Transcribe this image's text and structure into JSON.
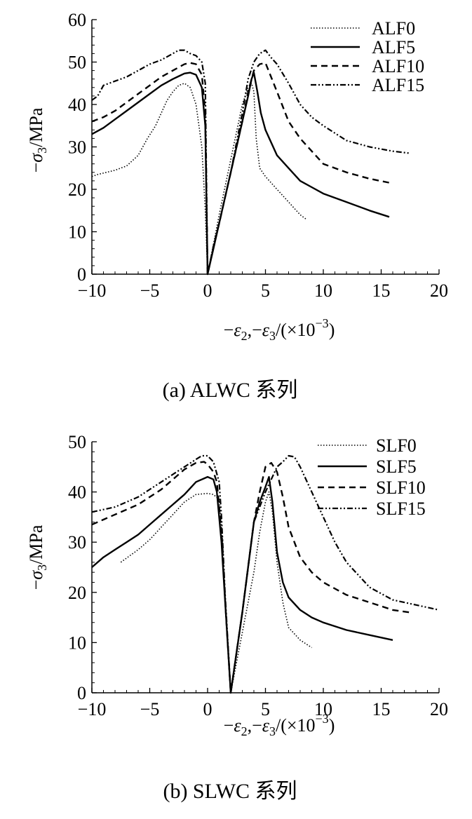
{
  "chart_data": [
    {
      "type": "line",
      "xlabel": "−ε2,−ε3/(×10−3)",
      "xlabel_parts": {
        "minus1": "−",
        "eps2": "ε",
        "sub2": "2",
        "comma": ",",
        "minus2": "−",
        "eps3": "ε",
        "sub3": "3",
        "rest": "/(×10",
        "exp": "−3",
        "close": ")"
      },
      "ylabel": "−σ3/MPa",
      "ylabel_parts": {
        "minus": "−",
        "sigma": "σ",
        "sub": "3",
        "rest": "/MPa"
      },
      "xlim": [
        -10,
        20
      ],
      "ylim": [
        0,
        60
      ],
      "xticks": [
        -10,
        -5,
        0,
        5,
        10,
        15,
        20
      ],
      "xtick_labels": [
        "−10",
        "−5",
        "0",
        "5",
        "10",
        "15",
        "20"
      ],
      "yticks": [
        0,
        10,
        20,
        30,
        40,
        50,
        60
      ],
      "ytick_labels": [
        "0",
        "10",
        "20",
        "30",
        "40",
        "50",
        "60"
      ],
      "legend_position": "top-right",
      "caption": "(a) ALWC 系列",
      "series": [
        {
          "name": "ALF0",
          "style": "dotted",
          "x": [
            -10,
            -9.5,
            -8,
            -7,
            -6,
            -5.2,
            -4.5,
            -4,
            -3.5,
            -3,
            -2.5,
            -2,
            -1.5,
            -1,
            -0.5,
            -0.2,
            0,
            0.5,
            1,
            2,
            3,
            3.5,
            3.8,
            4,
            4.2,
            4.5,
            5,
            6,
            7,
            8,
            8.5
          ],
          "y": [
            23,
            23.5,
            24.5,
            25.5,
            28,
            32,
            35,
            38,
            41,
            43,
            44.5,
            45,
            44,
            40,
            30,
            15,
            0,
            7,
            14,
            27,
            40,
            44,
            45,
            43,
            32,
            25,
            23,
            20,
            17,
            14,
            13
          ]
        },
        {
          "name": "ALF5",
          "style": "solid",
          "x": [
            -10,
            -9,
            -8,
            -7,
            -6,
            -5,
            -4,
            -3,
            -2,
            -1.5,
            -1,
            -0.5,
            -0.2,
            0,
            0.5,
            1,
            2,
            3,
            3.5,
            3.8,
            4,
            4.3,
            4.6,
            5,
            6,
            7,
            8,
            9,
            10,
            12,
            14,
            15.7
          ],
          "y": [
            33,
            34.5,
            36.5,
            38.5,
            40.5,
            42.5,
            44.5,
            46,
            47.3,
            47.5,
            47,
            44,
            35,
            0,
            6,
            12,
            24,
            36,
            42,
            46,
            47.5,
            43,
            38,
            34,
            28,
            25,
            22,
            20.5,
            19,
            17,
            15,
            13.5
          ]
        },
        {
          "name": "ALF10",
          "style": "dashed",
          "x": [
            -10,
            -9,
            -8,
            -7,
            -6,
            -5,
            -4,
            -3,
            -2,
            -1.5,
            -1,
            -0.5,
            -0.2,
            0,
            0.5,
            1,
            2,
            3,
            3.5,
            4,
            4.5,
            5,
            6,
            7,
            8,
            9,
            10,
            12,
            14,
            15.8
          ],
          "y": [
            36,
            37,
            38.5,
            40.5,
            42.5,
            44.5,
            46.5,
            48,
            49.5,
            49.8,
            49.5,
            47,
            38,
            0,
            6.5,
            12,
            24,
            36,
            43,
            48,
            49.5,
            49.8,
            43,
            36,
            32,
            29,
            26,
            24,
            22.5,
            21.5
          ]
        },
        {
          "name": "ALF15",
          "style": "dashdotdot",
          "x": [
            -10,
            -9.5,
            -9,
            -8,
            -7,
            -6,
            -5,
            -4,
            -3,
            -2.5,
            -2,
            -1.5,
            -1,
            -0.5,
            -0.2,
            0,
            0.5,
            1,
            2,
            3,
            3.5,
            4,
            4.5,
            5,
            5.5,
            6,
            7,
            8,
            9,
            10,
            12,
            14,
            16,
            17.5
          ],
          "y": [
            41,
            42,
            44.5,
            45.5,
            46.5,
            48,
            49.5,
            50.5,
            52,
            52.8,
            52.8,
            52,
            51.5,
            50,
            45,
            0,
            6.5,
            12,
            24,
            38,
            46,
            50,
            52,
            52.8,
            51,
            49.5,
            45,
            40,
            37,
            35,
            31.5,
            30,
            29,
            28.5
          ]
        }
      ]
    },
    {
      "type": "line",
      "xlabel": "−ε2,−ε3/(×10−3)",
      "xlabel_parts": {
        "minus1": "−",
        "eps2": "ε",
        "sub2": "2",
        "comma": ",",
        "minus2": "−",
        "eps3": "ε",
        "sub3": "3",
        "rest": "/(×10",
        "exp": "−3",
        "close": ")"
      },
      "ylabel": "−σ3/MPa",
      "ylabel_parts": {
        "minus": "−",
        "sigma": "σ",
        "sub": "3",
        "rest": "/MPa"
      },
      "xlim": [
        -10,
        20
      ],
      "ylim": [
        0,
        50
      ],
      "xticks": [
        -10,
        -5,
        0,
        5,
        10,
        15,
        20
      ],
      "xtick_labels": [
        "−10",
        "−5",
        "0",
        "5",
        "10",
        "15",
        "20"
      ],
      "yticks": [
        0,
        10,
        20,
        30,
        40,
        50
      ],
      "ytick_labels": [
        "0",
        "10",
        "20",
        "30",
        "40",
        "50"
      ],
      "legend_position": "top-right",
      "caption": "(b) SLWC 系列",
      "series": [
        {
          "name": "SLF0",
          "style": "dotted",
          "x": [
            -7.5,
            -6,
            -5,
            -4,
            -3,
            -2,
            -1,
            0,
            0.5,
            1,
            1.3,
            1.6,
            2,
            3,
            4,
            4.5,
            5,
            5.3,
            5.6,
            6,
            6.5,
            7,
            8,
            9
          ],
          "y": [
            26,
            28.5,
            30.5,
            33,
            35.5,
            38,
            39.5,
            39.7,
            39.5,
            38.5,
            30,
            15,
            0,
            12,
            24,
            32,
            38,
            40,
            36,
            26,
            18,
            13,
            10.5,
            9
          ]
        },
        {
          "name": "SLF5",
          "style": "solid",
          "x": [
            -10,
            -9,
            -8,
            -7,
            -6,
            -5,
            -4,
            -3,
            -2,
            -1,
            0,
            0.5,
            0.8,
            1.2,
            1.6,
            2,
            3,
            4,
            4.5,
            5,
            5.3,
            5.6,
            6,
            6.5,
            7,
            8,
            9,
            10,
            12,
            14,
            16
          ],
          "y": [
            25,
            27,
            28.5,
            30,
            31.5,
            33.5,
            35.5,
            37.5,
            39.5,
            42,
            43,
            42.5,
            40,
            30,
            15,
            0,
            16,
            34,
            38,
            41,
            43,
            38,
            28,
            22,
            19,
            16.5,
            15,
            14,
            12.5,
            11.5,
            10.5
          ]
        },
        {
          "name": "SLF10",
          "style": "dashed",
          "x": [
            -10,
            -9,
            -8,
            -7,
            -6,
            -5,
            -4,
            -3,
            -2,
            -1,
            -0.3,
            0,
            0.5,
            0.8,
            1.2,
            1.6,
            2,
            3,
            4,
            4.5,
            5,
            5.5,
            6,
            6.5,
            7,
            8,
            9,
            10,
            12,
            14,
            16,
            17.5
          ],
          "y": [
            33.5,
            34.5,
            35.5,
            36.5,
            37.5,
            39,
            40.5,
            42.5,
            44.5,
            45.8,
            46,
            45.5,
            44,
            42,
            32,
            15,
            0,
            16,
            34,
            40,
            45,
            45.8,
            44,
            39,
            33,
            27,
            24,
            22,
            19.5,
            18,
            16.5,
            16
          ]
        },
        {
          "name": "SLF15",
          "style": "dashdotdot",
          "x": [
            -10,
            -8,
            -7,
            -6,
            -5,
            -4,
            -3,
            -2,
            -1,
            -0.5,
            0,
            0.5,
            1,
            1.2,
            1.5,
            2,
            3,
            4,
            5,
            6,
            6.5,
            7,
            7.5,
            8,
            9,
            10,
            11,
            12,
            14,
            16,
            18,
            20
          ],
          "y": [
            36,
            37,
            38,
            39,
            40.5,
            42,
            43.5,
            45,
            46.5,
            47.2,
            47.2,
            46,
            42,
            35,
            20,
            0,
            16,
            34,
            40,
            45,
            46,
            47.2,
            47,
            45,
            40,
            35,
            30,
            26,
            21,
            18.5,
            17.5,
            16.5
          ]
        }
      ]
    }
  ]
}
